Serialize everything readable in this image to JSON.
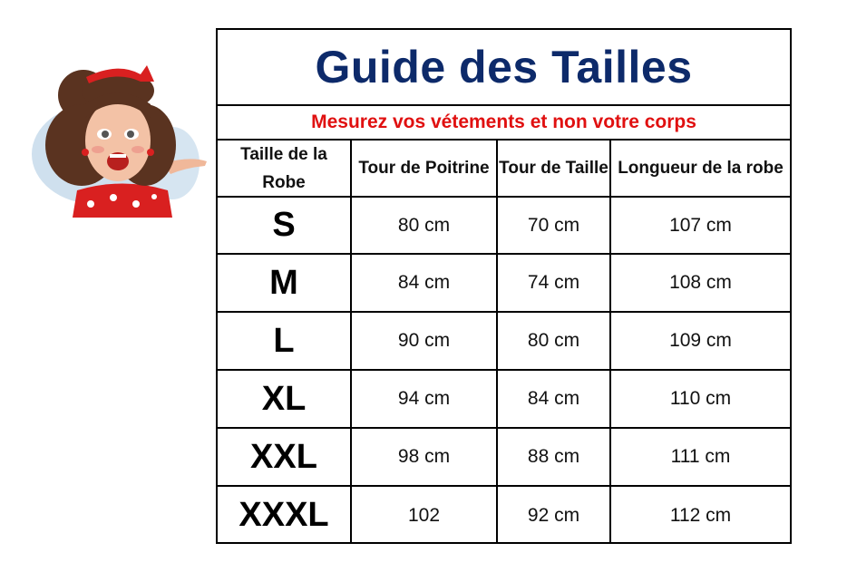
{
  "title": "Guide des Tailles",
  "subtitle": "Mesurez vos vétements et non votre corps",
  "colors": {
    "title": "#0d2a6a",
    "subtitle": "#e01010"
  },
  "illustration": "pin-up-woman-presenting",
  "headers": [
    "Taille de la Robe",
    "Tour de Poitrine",
    "Tour de Taille",
    "Longueur de la robe"
  ],
  "rows": [
    {
      "size": "S",
      "poitrine": "80 cm",
      "taille": "70 cm",
      "longueur": "107 cm"
    },
    {
      "size": "M",
      "poitrine": "84 cm",
      "taille": "74 cm",
      "longueur": "108 cm"
    },
    {
      "size": "L",
      "poitrine": "90 cm",
      "taille": "80 cm",
      "longueur": "109 cm"
    },
    {
      "size": "XL",
      "poitrine": "94 cm",
      "taille": "84 cm",
      "longueur": "110 cm"
    },
    {
      "size": "XXL",
      "poitrine": "98 cm",
      "taille": "88 cm",
      "longueur": "111 cm"
    },
    {
      "size": "XXXL",
      "poitrine": "102",
      "taille": "92 cm",
      "longueur": "112 cm"
    }
  ]
}
